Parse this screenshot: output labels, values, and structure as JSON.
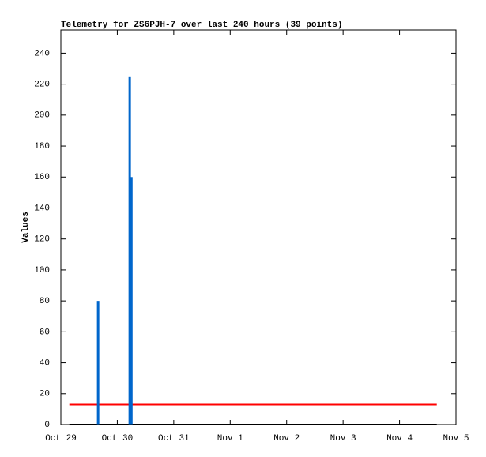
{
  "chart_data": {
    "type": "line",
    "title": "Telemetry for ZS6PJH-7 over last 240 hours (39 points)",
    "y_label": "Values",
    "xlim": [
      0,
      7
    ],
    "xticks": [
      {
        "value": 0,
        "label": "Oct 29"
      },
      {
        "value": 1,
        "label": "Oct 30"
      },
      {
        "value": 2,
        "label": "Oct 31"
      },
      {
        "value": 3,
        "label": "Nov 1"
      },
      {
        "value": 4,
        "label": "Nov 2"
      },
      {
        "value": 5,
        "label": "Nov 3"
      },
      {
        "value": 6,
        "label": "Nov 4"
      },
      {
        "value": 7,
        "label": "Nov 5"
      }
    ],
    "ylim": [
      0,
      255
    ],
    "yticks": [
      0,
      20,
      40,
      60,
      80,
      100,
      120,
      140,
      160,
      180,
      200,
      220,
      240
    ],
    "series": [
      {
        "type": "line",
        "color": "#000000",
        "x": [
          0.15,
          6.66
        ],
        "values": [
          0,
          0
        ]
      },
      {
        "type": "line",
        "color": "#ff0000",
        "x": [
          0.15,
          6.66
        ],
        "values": [
          13,
          13
        ]
      },
      {
        "type": "bar",
        "color": "#0066cc",
        "x": [
          0.66,
          1.22,
          1.25
        ],
        "values": [
          80,
          225,
          160
        ]
      }
    ]
  }
}
